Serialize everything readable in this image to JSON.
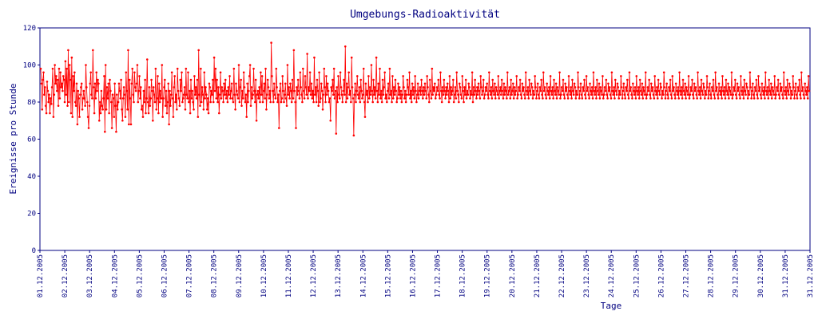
{
  "chart_data": {
    "type": "line",
    "title": "Umgebungs-Radioaktivität",
    "xlabel": "Tage",
    "ylabel": "Ereignisse pro Stunde",
    "ylim": [
      0,
      120
    ],
    "yticks": [
      0,
      20,
      40,
      60,
      80,
      100,
      120
    ],
    "xticks": [
      "01.12.2005",
      "02.12.2005",
      "03.12.2005",
      "04.12.2005",
      "05.12.2005",
      "06.12.2005",
      "07.12.2005",
      "08.12.2005",
      "09.12.2005",
      "10.12.2005",
      "11.12.2005",
      "12.12.2005",
      "13.12.2005",
      "14.12.2005",
      "15.12.2005",
      "16.12.2005",
      "17.12.2005",
      "18.12.2005",
      "19.12.2005",
      "20.12.2005",
      "21.12.2005",
      "22.12.2005",
      "23.12.2005",
      "24.12.2005",
      "25.12.2005",
      "26.12.2005",
      "27.12.2005",
      "28.12.2005",
      "29.12.2005",
      "30.12.2005",
      "31.12.2005",
      "31.12.2005"
    ],
    "grid": false,
    "series": [
      {
        "color": "#ff0000",
        "values": [
          98,
          90,
          76,
          92,
          96,
          84,
          88,
          78,
          74,
          91,
          86,
          80,
          84,
          74,
          82,
          79,
          88,
          98,
          72,
          84,
          100,
          90,
          94,
          86,
          92,
          78,
          98,
          82,
          96,
          88,
          90,
          86,
          94,
          92,
          80,
          102,
          84,
          98,
          78,
          108,
          80,
          100,
          92,
          74,
          104,
          72,
          94,
          86,
          96,
          80,
          78,
          90,
          68,
          86,
          82,
          72,
          84,
          88,
          90,
          76,
          82,
          86,
          82,
          78,
          100,
          88,
          80,
          72,
          66,
          78,
          90,
          96,
          84,
          82,
          108,
          88,
          74,
          90,
          82,
          96,
          86,
          92,
          90,
          70,
          80,
          74,
          86,
          78,
          76,
          82,
          94,
          64,
          100,
          76,
          88,
          82,
          90,
          74,
          92,
          86,
          80,
          66,
          84,
          82,
          72,
          90,
          78,
          64,
          84,
          76,
          80,
          90,
          86,
          82,
          92,
          76,
          70,
          82,
          88,
          84,
          72,
          96,
          86,
          76,
          108,
          68,
          92,
          82,
          68,
          90,
          98,
          84,
          80,
          96,
          88,
          86,
          90,
          100,
          80,
          86,
          94,
          82,
          88,
          76,
          78,
          72,
          86,
          80,
          92,
          74,
          82,
          103,
          80,
          74,
          88,
          78,
          82,
          92,
          86,
          70,
          88,
          84,
          80,
          98,
          76,
          82,
          94,
          74,
          90,
          80,
          86,
          82,
          100,
          72,
          82,
          88,
          92,
          78,
          86,
          74,
          80,
          90,
          68,
          86,
          78,
          84,
          96,
          82,
          72,
          88,
          94,
          80,
          84,
          76,
          98,
          86,
          82,
          78,
          92,
          86,
          96,
          80,
          82,
          84,
          88,
          76,
          98,
          84,
          82,
          96,
          80,
          86,
          74,
          92,
          82,
          86,
          80,
          76,
          94,
          84,
          88,
          82,
          92,
          72,
          108,
          84,
          78,
          98,
          80,
          88,
          84,
          76,
          96,
          82,
          88,
          84,
          76,
          82,
          74,
          90,
          88,
          80,
          86,
          84,
          92,
          80,
          104,
          86,
          98,
          82,
          92,
          80,
          88,
          74,
          84,
          96,
          82,
          88,
          86,
          80,
          90,
          84,
          92,
          82,
          86,
          80,
          88,
          84,
          94,
          82,
          86,
          90,
          82,
          80,
          98,
          84,
          76,
          90,
          86,
          84,
          82,
          100,
          80,
          88,
          92,
          78,
          86,
          82,
          96,
          88,
          80,
          84,
          72,
          90,
          80,
          86,
          94,
          100,
          78,
          88,
          82,
          84,
          98,
          86,
          80,
          92,
          70,
          84,
          86,
          82,
          88,
          80,
          96,
          84,
          94,
          80,
          86,
          90,
          82,
          98,
          76,
          84,
          92,
          88,
          82,
          86,
          80,
          112,
          94,
          86,
          80,
          90,
          84,
          82,
          98,
          88,
          80,
          84,
          66,
          86,
          90,
          80,
          82,
          94,
          86,
          80,
          84,
          90,
          82,
          78,
          100,
          84,
          88,
          82,
          90,
          86,
          80,
          92,
          82,
          108,
          86,
          80,
          66,
          88,
          84,
          92,
          86,
          82,
          96,
          88,
          84,
          80,
          98,
          86,
          82,
          94,
          88,
          84,
          106,
          82,
          88,
          86,
          96,
          84,
          90,
          82,
          86,
          80,
          104,
          84,
          88,
          80,
          92,
          86,
          78,
          96,
          80,
          82,
          90,
          86,
          76,
          84,
          98,
          88,
          80,
          94,
          84,
          90,
          86,
          80,
          82,
          70,
          88,
          86,
          92,
          84,
          98,
          82,
          86,
          63,
          88,
          80,
          94,
          84,
          82,
          96,
          88,
          84,
          80,
          86,
          92,
          84,
          110,
          80,
          90,
          82,
          88,
          96,
          84,
          86,
          80,
          104,
          88,
          82,
          62,
          84,
          90,
          80,
          86,
          94,
          84,
          82,
          88,
          80,
          92,
          86,
          82,
          84,
          98,
          80,
          72,
          90,
          84,
          86,
          80,
          94,
          82,
          88,
          84,
          100,
          86,
          80,
          92,
          84,
          88,
          82,
          104,
          86,
          80,
          90,
          84,
          98,
          82,
          86,
          80,
          92,
          84,
          88,
          96,
          82,
          84,
          80,
          86,
          90,
          82,
          98,
          84,
          86,
          80,
          94,
          82,
          88,
          84,
          92,
          86,
          80,
          82,
          90,
          84,
          88,
          82,
          86,
          80,
          84,
          94,
          88,
          82,
          86,
          80,
          84,
          92,
          88,
          84,
          96,
          82,
          86,
          80,
          90,
          84,
          88,
          82,
          94,
          86,
          80,
          84,
          90,
          82,
          86,
          88,
          84,
          92,
          86,
          82,
          88,
          84,
          90,
          86,
          82,
          94,
          88,
          84,
          80,
          92,
          86,
          82,
          98,
          84,
          88,
          86,
          90,
          82,
          84,
          88,
          86,
          92,
          84,
          82,
          96,
          86,
          80,
          88,
          84,
          92,
          86,
          82,
          88,
          84,
          90,
          86,
          80,
          94,
          82,
          88,
          84,
          86,
          92,
          80,
          84,
          88,
          82,
          96,
          86,
          84,
          80,
          90,
          88,
          84,
          82,
          94,
          86,
          80,
          88,
          84,
          92,
          82,
          86,
          84,
          90,
          88,
          82,
          86,
          84,
          96,
          80,
          88,
          84,
          92,
          86,
          82,
          88,
          84,
          90,
          86,
          82,
          94,
          88,
          84,
          86,
          92,
          82,
          84,
          88,
          86,
          90,
          84,
          82,
          96,
          86,
          84,
          88,
          82,
          92,
          86,
          84,
          90,
          82,
          88,
          86,
          84,
          94,
          82,
          86,
          88,
          84,
          92,
          86,
          82,
          90,
          84,
          88,
          86,
          82,
          96,
          84,
          86,
          88,
          82,
          92,
          84,
          86,
          90,
          82,
          88,
          84,
          86,
          94,
          82,
          84,
          88,
          86,
          92,
          84,
          82,
          90,
          86,
          88,
          84,
          82,
          96,
          86,
          84,
          88,
          82,
          92,
          86,
          84,
          90,
          88,
          82,
          86,
          84,
          94,
          88,
          82,
          86,
          90,
          84,
          82,
          88,
          86,
          92,
          84,
          82,
          96,
          86,
          88,
          84,
          82,
          90,
          86,
          84,
          88,
          82,
          94,
          86,
          84,
          88,
          82,
          92,
          86,
          84,
          90,
          82,
          88,
          86,
          84,
          96,
          82,
          84,
          88,
          86,
          92,
          84,
          82,
          90,
          86,
          88,
          84,
          82,
          94,
          86,
          84,
          88,
          82,
          92,
          86,
          84,
          90,
          88,
          82,
          86,
          84,
          96,
          88,
          82,
          86,
          90,
          84,
          82,
          88,
          86,
          92,
          84,
          82,
          94,
          86,
          88,
          84,
          82,
          90,
          86,
          84,
          88,
          82,
          96,
          86,
          84,
          88,
          82,
          92,
          86,
          84,
          90,
          82,
          88,
          86,
          84,
          94,
          82,
          84,
          88,
          86,
          92,
          84,
          82,
          90,
          86,
          88,
          84,
          82,
          96,
          86,
          84,
          88,
          82,
          92,
          86,
          84,
          90,
          88,
          82,
          86,
          84,
          94,
          88,
          82,
          86,
          90,
          84,
          82,
          88,
          86,
          92,
          84,
          82,
          96,
          86,
          88,
          84,
          82,
          90,
          86,
          84,
          88,
          82,
          94,
          86,
          84,
          88,
          82,
          92,
          86,
          84,
          90,
          82,
          88,
          86,
          84,
          96,
          82,
          84,
          88,
          86,
          92,
          84,
          82,
          90,
          86,
          88,
          84,
          82,
          94,
          86,
          84,
          88,
          82,
          92,
          86,
          84,
          90,
          88,
          82,
          86,
          84,
          96,
          88,
          82,
          86,
          90,
          84,
          82,
          88,
          86,
          92,
          84,
          82,
          94,
          86,
          88,
          84,
          82,
          90,
          86,
          84,
          88,
          82,
          96,
          86,
          84,
          88,
          82,
          92,
          86,
          84,
          90,
          82,
          88,
          86,
          84,
          94,
          82,
          84,
          88,
          86,
          92,
          84,
          82,
          90,
          86,
          88,
          84,
          82,
          96,
          86,
          84,
          88,
          82,
          92,
          86,
          84,
          90,
          88,
          82,
          86,
          84,
          94,
          88,
          82,
          86,
          90,
          84,
          82,
          88,
          86,
          92,
          84,
          82,
          96,
          86,
          88,
          84,
          82,
          90,
          86,
          84,
          88,
          82,
          94,
          86,
          84,
          88,
          82,
          92,
          86,
          84,
          90,
          82,
          88,
          86,
          84,
          96,
          82,
          84,
          88,
          86,
          92,
          84,
          82,
          90,
          86,
          88,
          84,
          82,
          94,
          86,
          84,
          88,
          82,
          92,
          86,
          84,
          90,
          88,
          82,
          86,
          84,
          96,
          88,
          82,
          86,
          90,
          84,
          82,
          88,
          86,
          92,
          84,
          82,
          94,
          86,
          88,
          84,
          82,
          90,
          86,
          84,
          88,
          82,
          96,
          86,
          84,
          88,
          82,
          92,
          86,
          84,
          90,
          82,
          88,
          86,
          84,
          94,
          82,
          84,
          88,
          86,
          92,
          84,
          82,
          90,
          86,
          88,
          84,
          82,
          96,
          86,
          84,
          88,
          82,
          92,
          86,
          84,
          90,
          88,
          82,
          86,
          84,
          94,
          88,
          82,
          86,
          90,
          84,
          82,
          88,
          86,
          92,
          84,
          82,
          96,
          86,
          88,
          84,
          82,
          90,
          86,
          84,
          88,
          82,
          94,
          86
        ]
      }
    ]
  }
}
